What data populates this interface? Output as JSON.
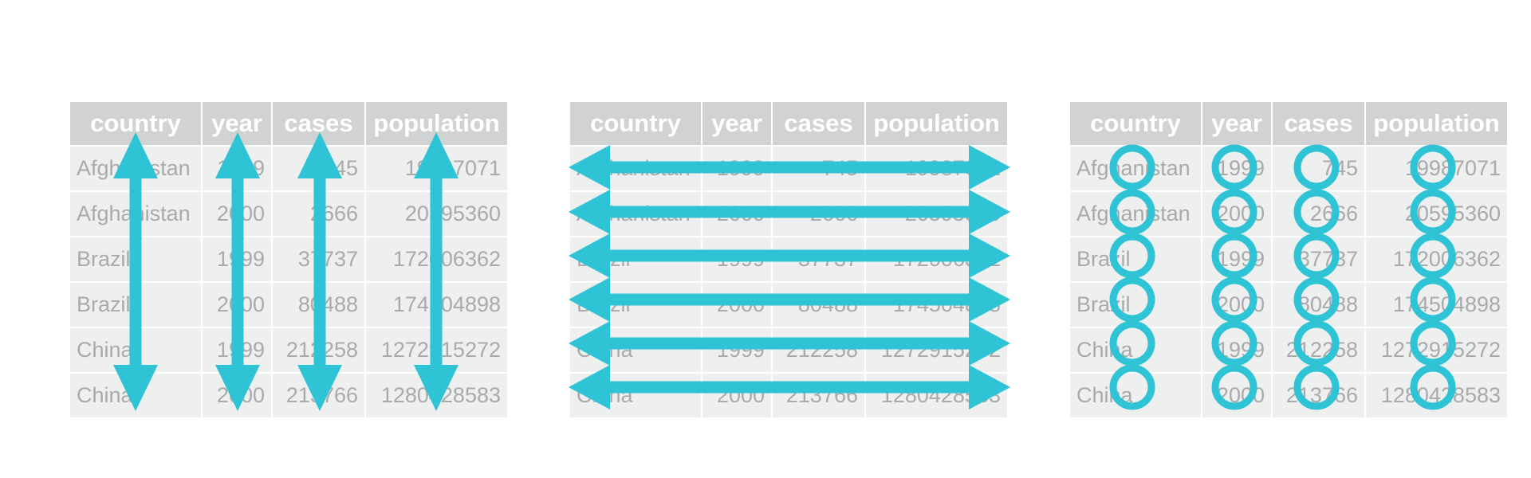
{
  "table": {
    "headers": [
      "country",
      "year",
      "cases",
      "population"
    ],
    "rows": [
      [
        "Afghanistan",
        "1999",
        "745",
        "19987071"
      ],
      [
        "Afghanistan",
        "2000",
        "2666",
        "20595360"
      ],
      [
        "Brazil",
        "1999",
        "37737",
        "172006362"
      ],
      [
        "Brazil",
        "2000",
        "80488",
        "174504898"
      ],
      [
        "China",
        "1999",
        "212258",
        "1272915272"
      ],
      [
        "China",
        "2000",
        "213766",
        "1280428583"
      ]
    ]
  },
  "panels": [
    {
      "id": "columns",
      "overlay": "vertical-arrows"
    },
    {
      "id": "rows",
      "overlay": "horizontal-arrows"
    },
    {
      "id": "cells",
      "overlay": "circles"
    }
  ],
  "colors": {
    "accent": "#2ec4d5",
    "header_bg": "#d1d2d4",
    "cell_bg": "#eeefef",
    "cell_text": "#a9aaab",
    "header_text": "#ffffff"
  }
}
